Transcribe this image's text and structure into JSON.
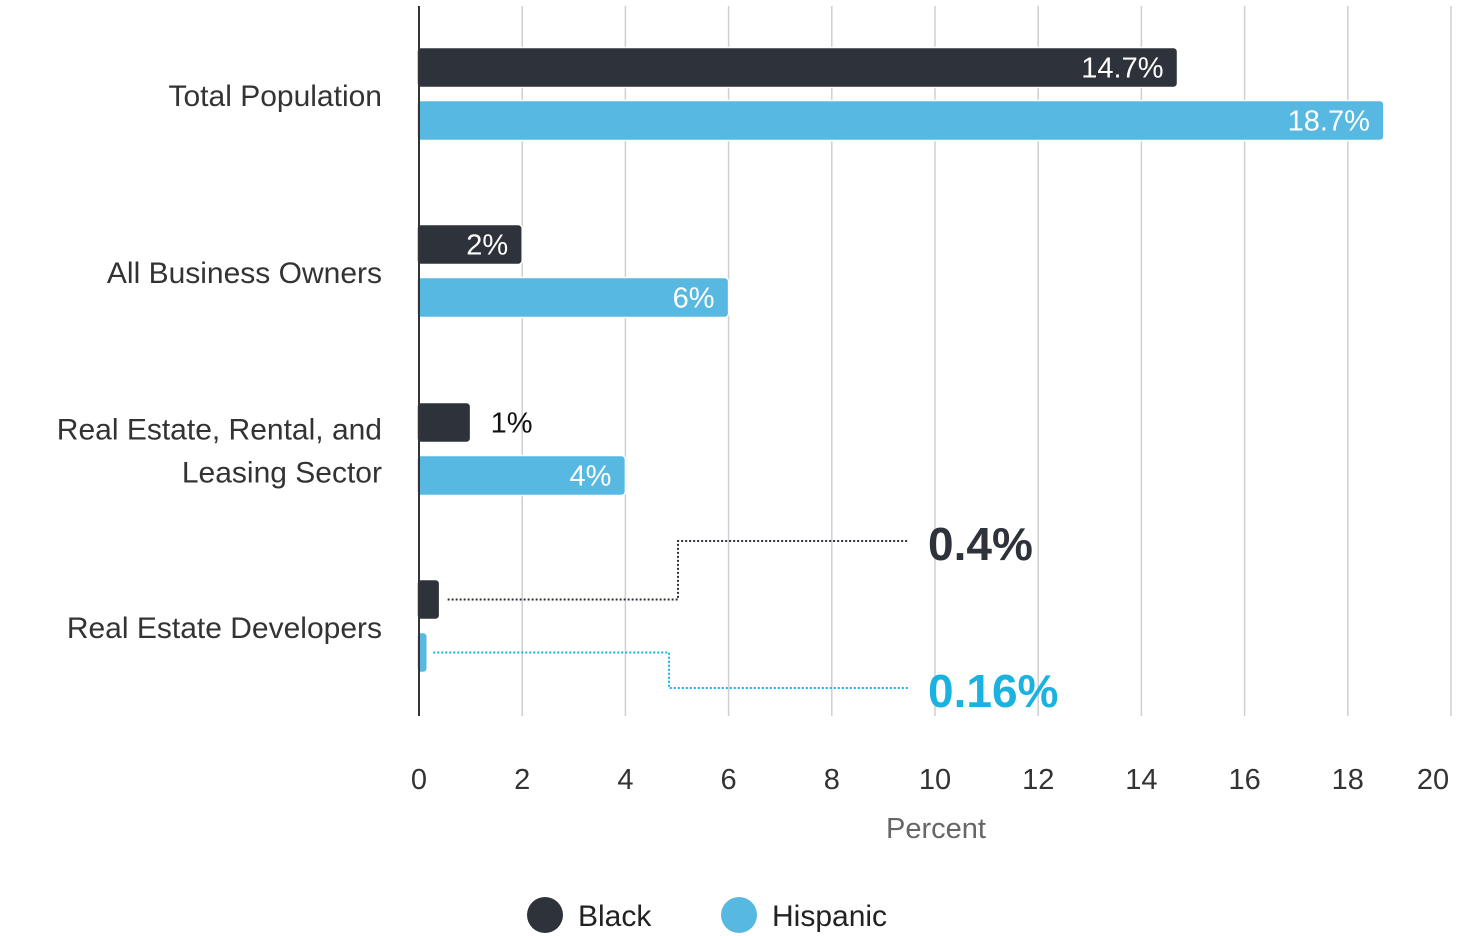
{
  "chart_data": {
    "type": "bar",
    "orientation": "horizontal",
    "categories": [
      "Total Population",
      "All Business Owners",
      "Real Estate, Rental, and Leasing Sector",
      "Real Estate Developers"
    ],
    "category_display_lines": [
      [
        "Total Population"
      ],
      [
        "All Business Owners"
      ],
      [
        "Real Estate, Rental, and",
        "Leasing Sector"
      ],
      [
        "Real Estate Developers"
      ]
    ],
    "series": [
      {
        "name": "Black",
        "color": "#2e323b",
        "values": [
          14.7,
          2,
          1,
          0.4
        ],
        "labels": [
          "14.7%",
          "2%",
          "1%",
          ""
        ]
      },
      {
        "name": "Hispanic",
        "color": "#57b9e1",
        "values": [
          18.7,
          6,
          4,
          0.16
        ],
        "labels": [
          "18.7%",
          "6%",
          "4%",
          ""
        ]
      }
    ],
    "annotations": [
      {
        "text": "0.4%",
        "series": "Black",
        "category": "Real Estate Developers",
        "color": "#2e323b"
      },
      {
        "text": "0.16%",
        "series": "Hispanic",
        "category": "Real Estate Developers",
        "color": "#1ab3e0"
      }
    ],
    "xlabel": "Percent",
    "xlim": [
      0,
      20
    ],
    "xticks": [
      0,
      2,
      4,
      6,
      8,
      10,
      12,
      14,
      16,
      18,
      20
    ],
    "grid": true,
    "legend": "bottom"
  }
}
